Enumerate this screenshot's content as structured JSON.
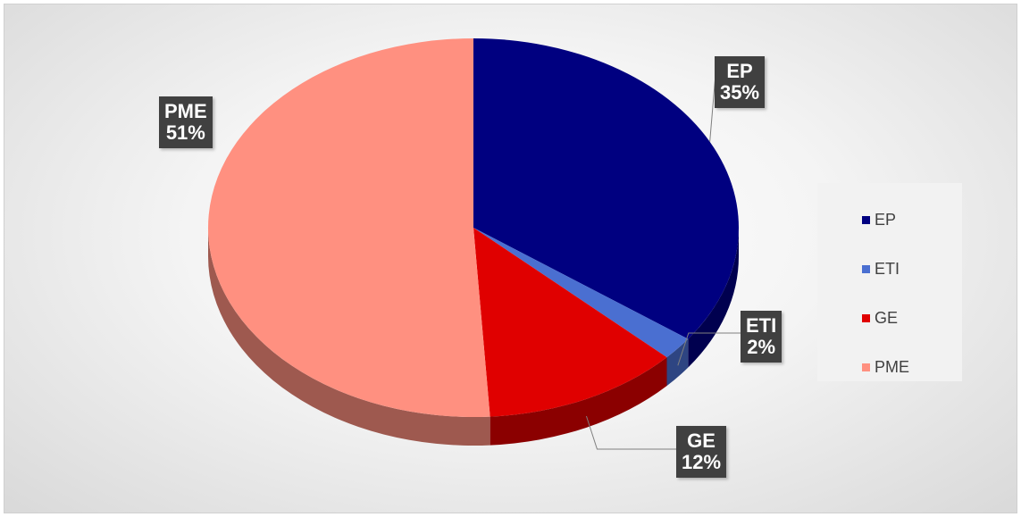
{
  "chart_data": {
    "type": "pie",
    "style": "3d",
    "categories": [
      "EP",
      "ETI",
      "GE",
      "PME"
    ],
    "values": [
      35,
      2,
      12,
      51
    ],
    "data_labels": [
      {
        "name": "EP",
        "percent": "35%"
      },
      {
        "name": "ETI",
        "percent": "2%"
      },
      {
        "name": "GE",
        "percent": "12%"
      },
      {
        "name": "PME",
        "percent": "51%"
      }
    ],
    "colors": [
      "#000080",
      "#4A6FD1",
      "#E00000",
      "#FF9080"
    ],
    "legend_position": "right",
    "title": ""
  }
}
